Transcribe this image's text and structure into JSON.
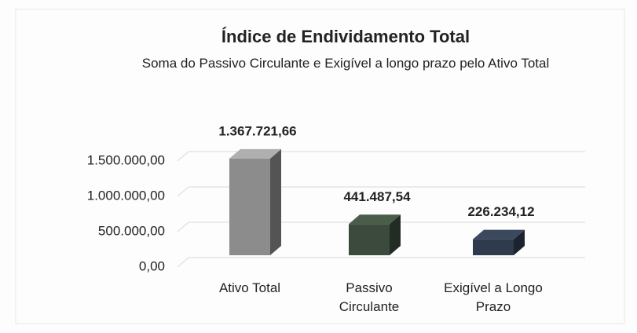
{
  "chart_data": {
    "type": "bar3d",
    "title": "Índice de Endividamento Total",
    "subtitle": "Soma do Passivo Circulante e Exigível a longo prazo pelo Ativo Total",
    "categories": [
      "Ativo Total",
      "Passivo Circulante",
      "Exigível a Longo Prazo"
    ],
    "values": [
      1367721.66,
      441487.54,
      226234.12
    ],
    "value_labels": [
      "1.367.721,66",
      "441.487,54",
      "226.234,12"
    ],
    "colors": [
      "#8c8c8c",
      "#3b4a3c",
      "#2f3a4c"
    ],
    "ylim": [
      0,
      1500000
    ],
    "yticks": [
      {
        "value": 0,
        "label": "0,00"
      },
      {
        "value": 500000,
        "label": "500.000,00"
      },
      {
        "value": 1000000,
        "label": "1.000.000,00"
      },
      {
        "value": 1500000,
        "label": "1.500.000,00"
      }
    ],
    "grid": true
  }
}
